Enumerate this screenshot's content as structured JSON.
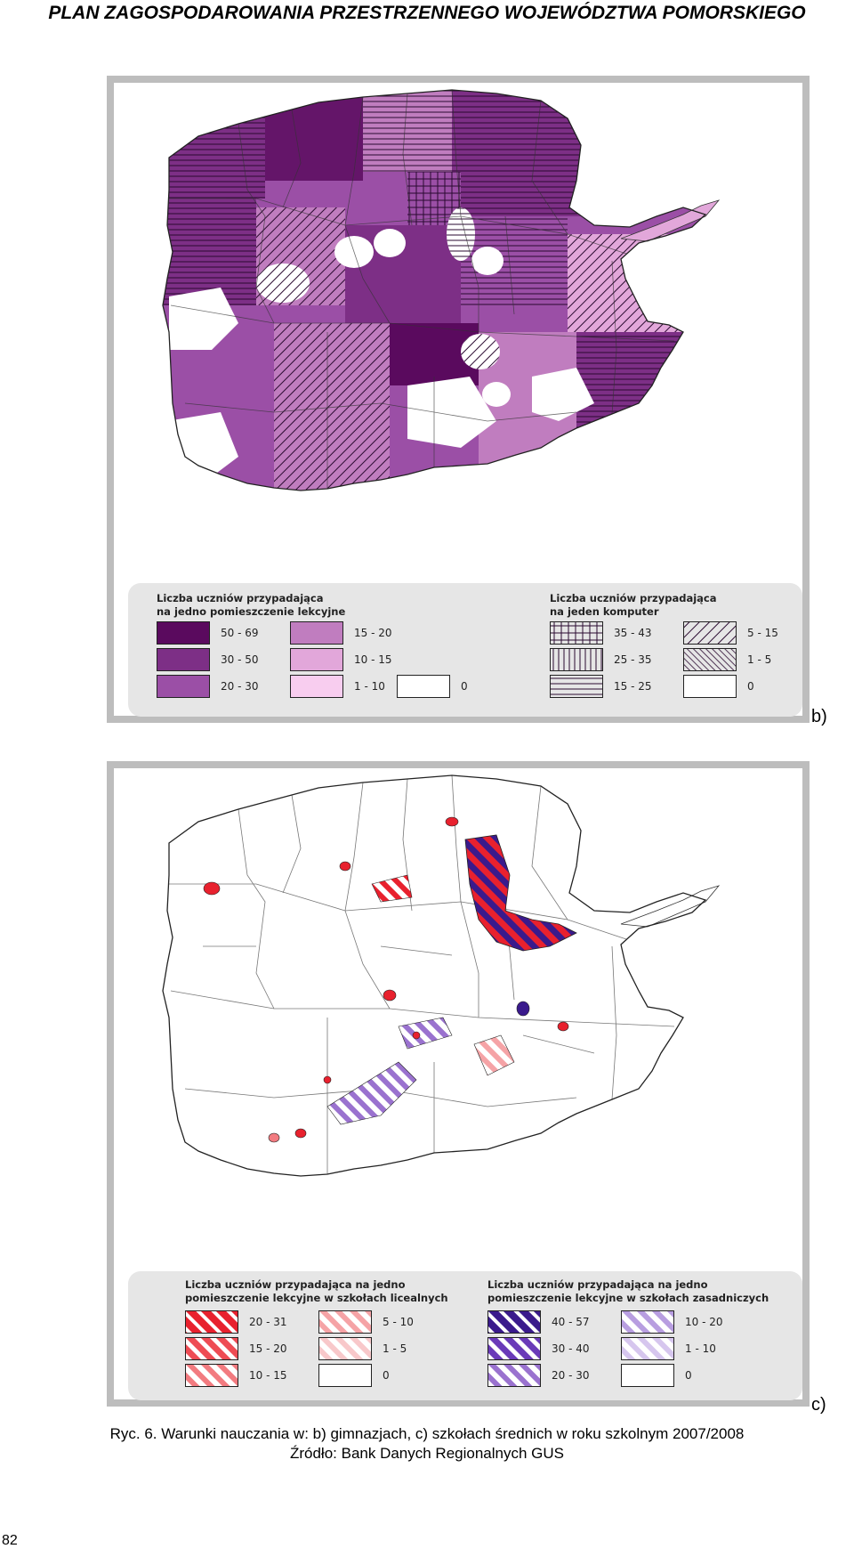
{
  "header": {
    "title": "PLAN ZAGOSPODAROWANIA PRZESTRZENNEGO WOJEWÓDZTWA POMORSKIEGO"
  },
  "map_b": {
    "panel_label": "b)",
    "legend_left": {
      "title": "Liczba uczniów przypadająca\nna jedno pomieszczenie lekcyjne",
      "items": [
        {
          "label": "50 - 69",
          "color": "#5a0a5e"
        },
        {
          "label": "30 - 50",
          "color": "#7d2f86"
        },
        {
          "label": "20 - 30",
          "color": "#9b4fa6"
        },
        {
          "label": "15 - 20",
          "color": "#c07dbf"
        },
        {
          "label": "10 - 15",
          "color": "#e2a7da"
        },
        {
          "label": "1 - 10",
          "color": "#f8cdef"
        },
        {
          "label": "0",
          "color": "#ffffff"
        }
      ]
    },
    "legend_right": {
      "title": "Liczba uczniów przypadająca\nna jeden komputer",
      "items": [
        {
          "label": "35 - 43",
          "pattern": "grid"
        },
        {
          "label": "25 - 35",
          "pattern": "vertical"
        },
        {
          "label": "15 - 25",
          "pattern": "horizontal"
        },
        {
          "label": "5 - 15",
          "pattern": "diagonal-wide"
        },
        {
          "label": "1 - 5",
          "pattern": "diagonal-narrow"
        },
        {
          "label": "0",
          "pattern": "none"
        }
      ]
    }
  },
  "map_c": {
    "panel_label": "c)",
    "legend_left": {
      "title": "Liczba uczniów przypadająca na jedno\npomieszczenie lekcyjne w szkołach licealnych",
      "items": [
        {
          "label": "20 - 31",
          "color": "#e8212e"
        },
        {
          "label": "15 - 20",
          "color": "#ee4c54"
        },
        {
          "label": "10 - 15",
          "color": "#f27b80"
        },
        {
          "label": "5 - 10",
          "color": "#f5a3a6"
        },
        {
          "label": "1 - 5",
          "color": "#f8c8ca"
        },
        {
          "label": "0",
          "color": "#ffffff"
        }
      ]
    },
    "legend_right": {
      "title": "Liczba uczniów przypadająca na jedno\npomieszczenie lekcyjne w szkołach zasadniczych",
      "items": [
        {
          "label": "40 - 57",
          "color": "#3a1a8c"
        },
        {
          "label": "30 - 40",
          "color": "#6a3ab8"
        },
        {
          "label": "20 - 30",
          "color": "#9a72cf"
        },
        {
          "label": "10 - 20",
          "color": "#b89ee0"
        },
        {
          "label": "1 - 10",
          "color": "#d6c6ee"
        },
        {
          "label": "0",
          "color": "#ffffff"
        }
      ]
    }
  },
  "caption": {
    "line1": "Ryc. 6. Warunki nauczania w: b) gimnazjach, c) szkołach średnich w roku szkolnym 2007/2008",
    "line2": "Źródło: Bank Danych Regionalnych GUS"
  },
  "page_number": "82"
}
